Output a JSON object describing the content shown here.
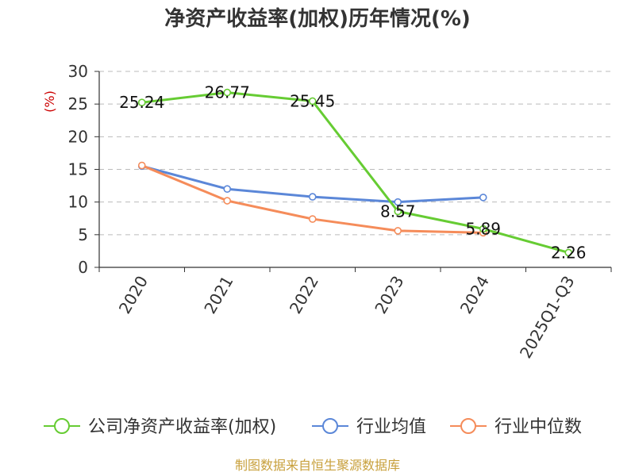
{
  "chart_data": {
    "type": "line",
    "title": "净资产收益率(加权)历年情况(%)",
    "ylabel": "(%)",
    "categories": [
      "2020",
      "2021",
      "2022",
      "2023",
      "2024",
      "2025Q1-Q3"
    ],
    "ylim": [
      0,
      30
    ],
    "yticks": [
      0,
      5,
      10,
      15,
      20,
      25,
      30
    ],
    "grid": true,
    "legend_position": "bottom",
    "series": [
      {
        "name": "公司净资产收益率(加权)",
        "color": "#66cc33",
        "values": [
          25.24,
          26.77,
          25.45,
          8.57,
          5.89,
          2.26
        ],
        "labels": [
          "25.24",
          "26.77",
          "25.45",
          "8.57",
          "5.89",
          "2.26"
        ]
      },
      {
        "name": "行业均值",
        "color": "#5b87d8",
        "values": [
          15.5,
          12.0,
          10.8,
          10.0,
          10.7,
          null
        ]
      },
      {
        "name": "行业中位数",
        "color": "#f58c5a",
        "values": [
          15.6,
          10.2,
          7.4,
          5.6,
          5.3,
          null
        ]
      }
    ],
    "source": "制图数据来自恒生聚源数据库"
  }
}
